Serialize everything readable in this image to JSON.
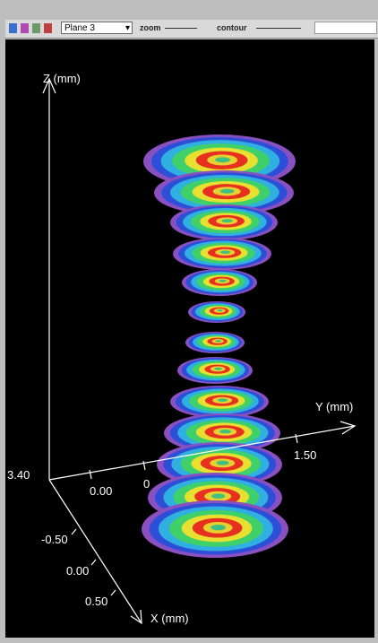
{
  "toolbar": {
    "plane": "Plane 3",
    "zoom": "zoom",
    "contour": "contour"
  },
  "plot": {
    "z_label": "Z (mm)",
    "y_label": "Y (mm)",
    "x_label": "X (mm)",
    "z_ticks": [
      "3.40"
    ],
    "y_ticks": [
      "0.00",
      "0",
      "1.50"
    ],
    "x_ticks": [
      "-0.50",
      "0.00",
      "0.50"
    ]
  }
}
